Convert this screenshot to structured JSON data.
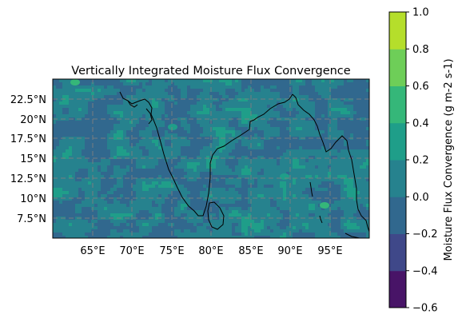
{
  "title": "Vertically Integrated Moisture Flux Convergence",
  "map": {
    "lon_range": [
      60,
      100
    ],
    "lat_range": [
      5,
      25
    ],
    "lon_ticks": [
      "65°E",
      "70°E",
      "75°E",
      "80°E",
      "85°E",
      "90°E",
      "95°E"
    ],
    "lat_ticks": [
      "7.5°N",
      "10°N",
      "12.5°N",
      "15°N",
      "17.5°N",
      "20°N",
      "22.5°N"
    ],
    "gridlines": true,
    "gridline_style": "dashed",
    "coastlines": true,
    "field": "Moisture Flux Convergence",
    "field_pattern": "noisy random field, mostly values between -0.2 and 0.4"
  },
  "colorbar": {
    "label": "Moisture Flux Convergence (g m-2 s-1)",
    "ticks": [
      "−0.6",
      "−0.4",
      "−0.2",
      "0.0",
      "0.2",
      "0.4",
      "0.6",
      "0.8",
      "1.0"
    ],
    "levels": [
      -0.6,
      -0.4,
      -0.2,
      0.0,
      0.2,
      0.4,
      0.6,
      0.8,
      1.0
    ],
    "colors": [
      "#481467",
      "#3f4889",
      "#31688e",
      "#26828e",
      "#1f9e89",
      "#35b779",
      "#6ece58",
      "#b5de2b",
      "#dde318"
    ],
    "placement": "right"
  }
}
